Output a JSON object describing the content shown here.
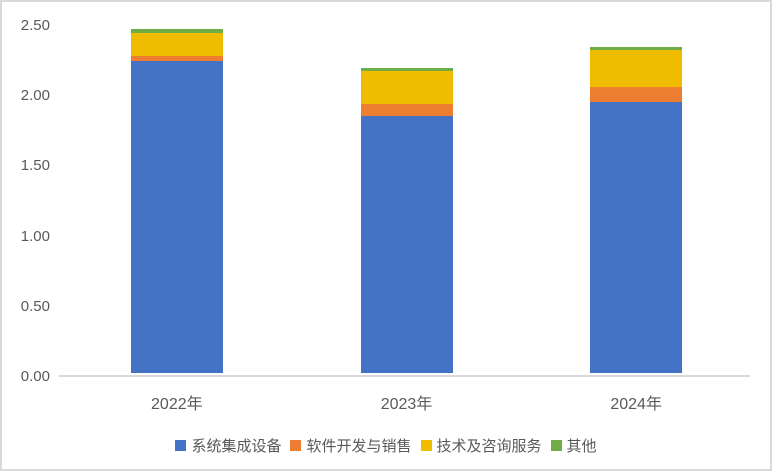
{
  "chart_data": {
    "type": "bar",
    "stacked": true,
    "categories": [
      "2022年",
      "2023年",
      "2024年"
    ],
    "series": [
      {
        "name": "系统集成设备",
        "color": "#4472C4",
        "values": [
          2.22,
          1.83,
          1.93
        ]
      },
      {
        "name": "软件开发与销售",
        "color": "#ED7D31",
        "values": [
          0.04,
          0.09,
          0.11
        ]
      },
      {
        "name": "技术及咨询服务",
        "color": "#F0BC00",
        "values": [
          0.16,
          0.23,
          0.26
        ]
      },
      {
        "name": "其他",
        "color": "#70AD47",
        "values": [
          0.03,
          0.02,
          0.02
        ]
      }
    ],
    "totals": [
      2.45,
      2.17,
      2.32
    ],
    "title": "",
    "xlabel": "",
    "ylabel": "",
    "ylim": [
      0,
      2.5
    ],
    "ytick_labels": [
      "0.00",
      "0.50",
      "1.00",
      "1.50",
      "2.00",
      "2.50"
    ],
    "ytick_values": [
      0.0,
      0.5,
      1.0,
      1.5,
      2.0,
      2.5
    ],
    "grid": false,
    "legend_position": "bottom",
    "axis_text_color": "#595959",
    "axis_line_color": "#d9d9d9",
    "frame_border_color": "#d9d9d9",
    "background_color": "#ffffff"
  }
}
